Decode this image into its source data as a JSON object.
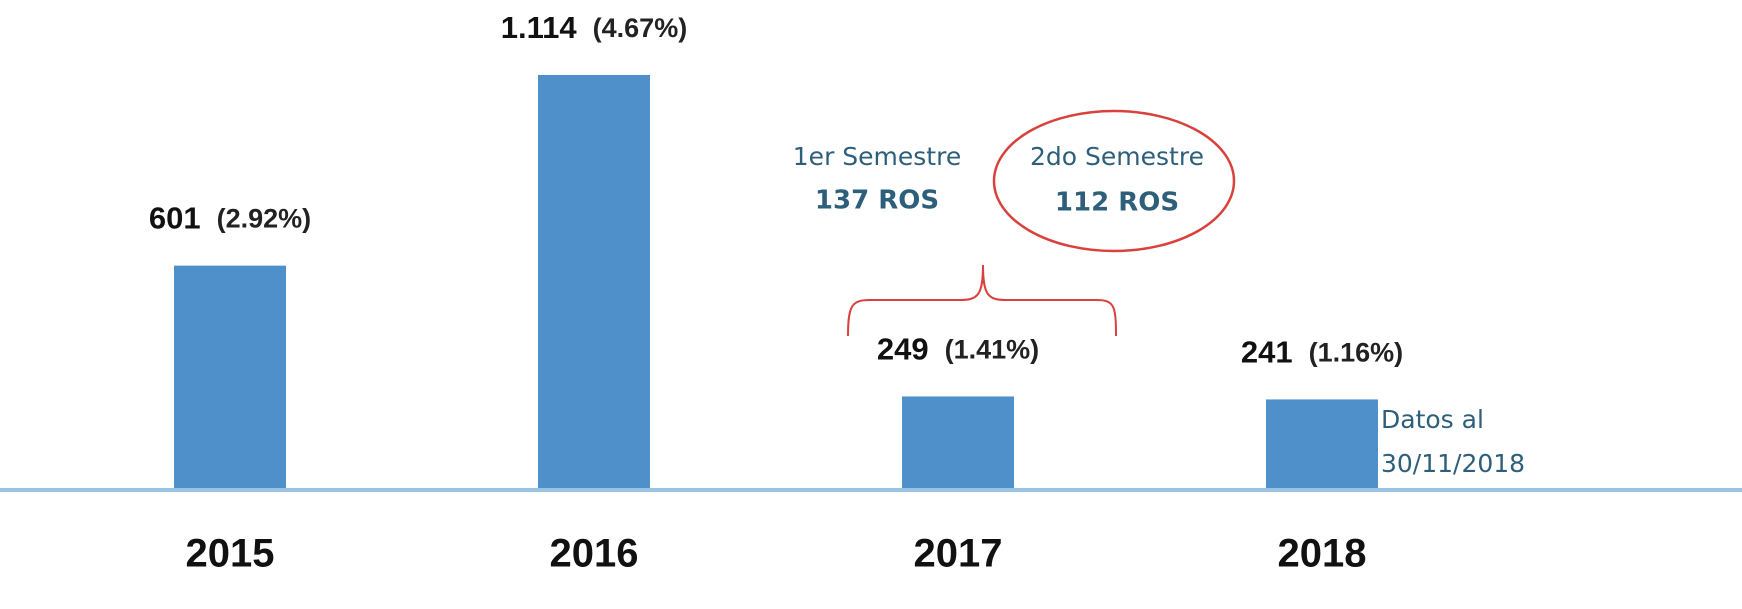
{
  "chart_data": {
    "type": "bar",
    "categories": [
      "2015",
      "2016",
      "2017",
      "2018"
    ],
    "values": [
      601,
      1114,
      249,
      241
    ],
    "value_labels": [
      "601",
      "1.114",
      "249",
      "241"
    ],
    "percent_labels": [
      "(2.92%)",
      "(4.67%)",
      "(1.41%)",
      "(1.16%)"
    ],
    "color": "#4f90cb",
    "ylim": [
      0,
      1200
    ],
    "annotations": {
      "first_semester": {
        "label": "1er Semestre",
        "count": "137 ROS"
      },
      "second_semester": {
        "label": "2do Semestre",
        "count": "112 ROS"
      },
      "note": [
        "Datos al",
        "30/11/2018"
      ]
    }
  }
}
